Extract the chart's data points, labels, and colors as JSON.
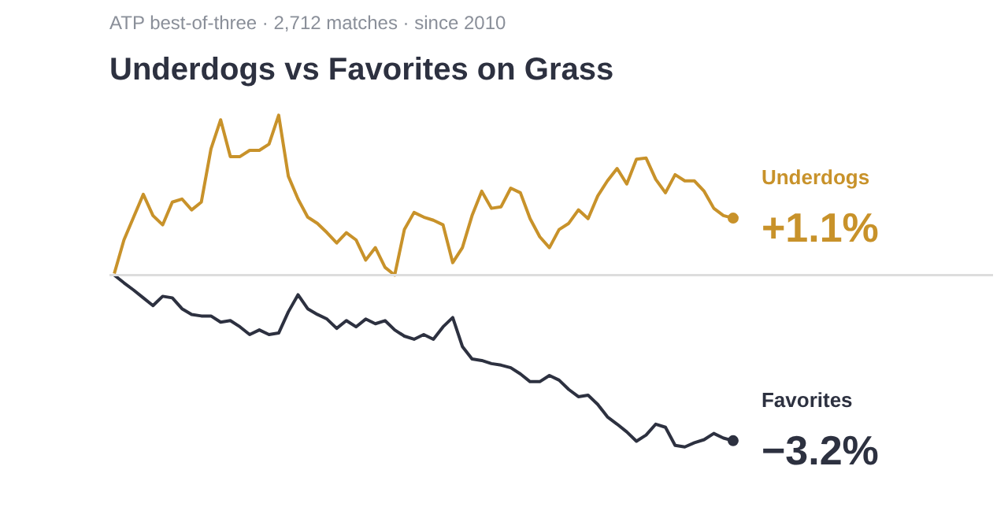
{
  "chart_data": {
    "type": "line",
    "title": "Underdogs vs Favorites on Grass",
    "subtitle": "ATP best-of-three · 2,712 matches · since 2010",
    "categories": [
      null,
      null,
      null,
      null,
      null,
      null,
      null,
      null,
      null,
      null,
      null,
      null,
      null,
      null,
      null,
      null,
      null,
      null,
      null,
      null,
      null,
      null,
      null,
      null,
      null,
      null,
      null,
      null,
      null,
      null,
      null,
      null,
      null,
      null,
      null,
      null,
      null,
      null,
      null,
      null,
      null,
      null,
      null,
      null,
      null,
      null,
      null,
      null,
      null,
      null,
      null,
      null,
      null,
      null,
      null,
      null,
      null,
      null,
      null,
      null,
      null,
      null,
      null,
      null,
      null
    ],
    "series": [
      {
        "name": "Underdogs",
        "color": "#c8922a",
        "values": [
          0.03,
          0.68,
          1.12,
          1.56,
          1.15,
          0.97,
          1.41,
          1.47,
          1.26,
          1.41,
          2.44,
          3.0,
          2.29,
          2.29,
          2.41,
          2.41,
          2.53,
          3.09,
          1.91,
          1.47,
          1.12,
          1.0,
          0.82,
          0.62,
          0.82,
          0.68,
          0.29,
          0.53,
          0.15,
          0,
          0.88,
          1.21,
          1.12,
          1.06,
          0.97,
          0.24,
          0.53,
          1.15,
          1.62,
          1.29,
          1.32,
          1.68,
          1.59,
          1.09,
          0.74,
          0.53,
          0.88,
          1.0,
          1.26,
          1.09,
          1.53,
          1.82,
          2.06,
          1.76,
          2.24,
          2.26,
          1.85,
          1.59,
          1.94,
          1.82,
          1.82,
          1.62,
          1.29,
          1.15,
          1.1
        ],
        "value_labels": [
          null,
          null,
          null,
          null,
          null,
          null,
          null,
          null,
          null,
          null,
          null,
          null,
          null,
          null,
          null,
          null,
          null,
          null,
          null,
          null,
          null,
          null,
          null,
          null,
          null,
          null,
          null,
          null,
          null,
          null,
          null,
          null,
          null,
          null,
          null,
          null,
          null,
          null,
          null,
          null,
          null,
          null,
          null,
          null,
          null,
          null,
          null,
          null,
          null,
          null,
          null,
          null,
          null,
          null,
          null,
          null,
          null,
          null,
          null,
          null,
          null,
          null,
          null,
          null,
          "+1.1%"
        ]
      },
      {
        "name": "Favorites",
        "color": "#2d3140",
        "values": [
          0,
          -0.15,
          -0.29,
          -0.44,
          -0.59,
          -0.41,
          -0.44,
          -0.65,
          -0.76,
          -0.79,
          -0.79,
          -0.91,
          -0.88,
          -1.0,
          -1.15,
          -1.06,
          -1.15,
          -1.12,
          -0.71,
          -0.38,
          -0.65,
          -0.76,
          -0.85,
          -1.03,
          -0.88,
          -1.0,
          -0.85,
          -0.94,
          -0.88,
          -1.06,
          -1.18,
          -1.24,
          -1.15,
          -1.24,
          -1.0,
          -0.82,
          -1.38,
          -1.62,
          -1.65,
          -1.71,
          -1.74,
          -1.79,
          -1.91,
          -2.06,
          -2.06,
          -1.94,
          -2.03,
          -2.21,
          -2.35,
          -2.32,
          -2.5,
          -2.74,
          -2.88,
          -3.03,
          -3.21,
          -3.09,
          -2.88,
          -2.94,
          -3.29,
          -3.32,
          -3.24,
          -3.18,
          -3.06,
          -3.15,
          -3.2
        ],
        "value_labels": [
          null,
          null,
          null,
          null,
          null,
          null,
          null,
          null,
          null,
          null,
          null,
          null,
          null,
          null,
          null,
          null,
          null,
          null,
          null,
          null,
          null,
          null,
          null,
          null,
          null,
          null,
          null,
          null,
          null,
          null,
          null,
          null,
          null,
          null,
          null,
          null,
          null,
          null,
          null,
          null,
          null,
          null,
          null,
          null,
          null,
          null,
          null,
          null,
          null,
          null,
          null,
          null,
          null,
          null,
          null,
          null,
          null,
          null,
          null,
          null,
          null,
          null,
          null,
          null,
          "−3.2%"
        ]
      }
    ],
    "ref_lines": [
      {
        "axis": "y",
        "value": 0,
        "color": "#dddddd"
      }
    ],
    "line_style": "solid",
    "grid": false,
    "legend": false
  }
}
